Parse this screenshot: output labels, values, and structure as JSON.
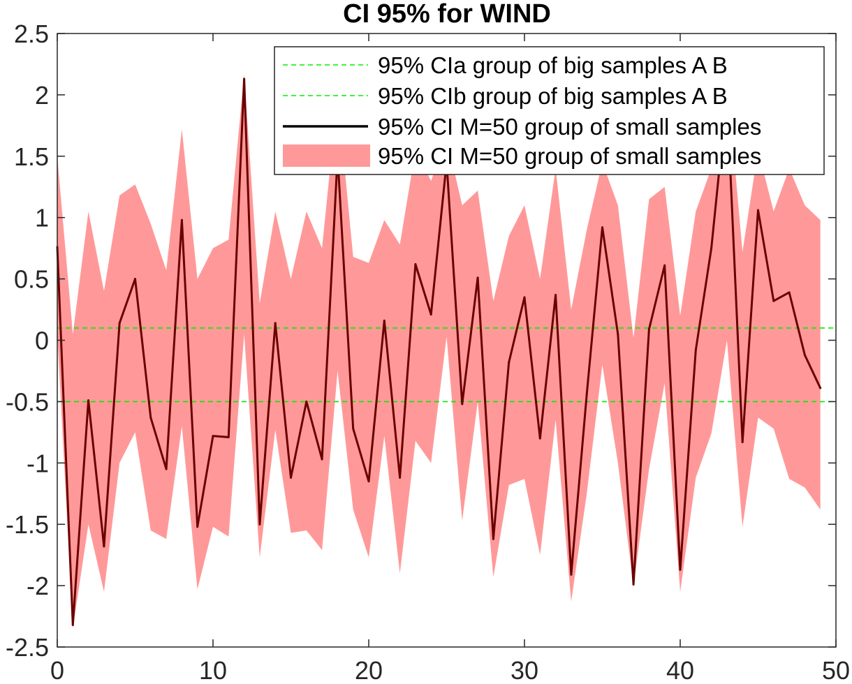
{
  "chart_data": {
    "type": "line",
    "title": "CI 95% for WIND",
    "xlabel": "",
    "ylabel": "",
    "xlim": [
      0,
      50
    ],
    "ylim": [
      -2.5,
      2.5
    ],
    "xticks": [
      0,
      10,
      20,
      30,
      40,
      50
    ],
    "yticks": [
      2.5,
      2,
      1.5,
      1,
      0.5,
      0,
      -0.5,
      -1,
      -1.5,
      -2,
      -2.5
    ],
    "xtick_labels": [
      "0",
      "10",
      "20",
      "30",
      "40",
      "50"
    ],
    "ytick_labels": [
      "2.5",
      "2",
      "1.5",
      "1",
      "0.5",
      "0",
      "-0.5",
      "-1",
      "-1.5",
      "-2",
      "-2.5"
    ],
    "grid": false,
    "legend_position": "top-right",
    "colors": {
      "ci_big": "#00ee00",
      "mean_line": "#6b0000",
      "band": "#ff9999",
      "legend_line": "#000000"
    },
    "series": [
      {
        "name": "95% CIa group of big samples A B",
        "kind": "hline",
        "y": 0.1,
        "style": "dashed"
      },
      {
        "name": "95% CIb group of big samples A B",
        "kind": "hline",
        "y": -0.5,
        "style": "dashed"
      },
      {
        "name": "95% CI M=50 group of small samples",
        "kind": "line",
        "x": [
          0,
          1,
          2,
          3,
          4,
          5,
          6,
          7,
          8,
          9,
          10,
          11,
          12,
          13,
          14,
          15,
          16,
          17,
          18,
          19,
          20,
          21,
          22,
          23,
          24,
          25,
          26,
          27,
          28,
          29,
          30,
          31,
          32,
          33,
          34,
          35,
          36,
          37,
          38,
          39,
          40,
          41,
          42,
          43,
          44,
          45,
          46,
          47,
          48,
          49
        ],
        "y": [
          0.76,
          -2.32,
          -0.49,
          -1.68,
          0.14,
          0.5,
          -0.63,
          -1.05,
          0.98,
          -1.52,
          -0.78,
          -0.79,
          2.13,
          -1.5,
          0.14,
          -1.12,
          -0.5,
          -0.97,
          1.5,
          -0.72,
          -1.15,
          0.16,
          -1.12,
          0.62,
          0.21,
          1.45,
          -0.52,
          0.51,
          -1.62,
          -0.18,
          0.35,
          -0.8,
          0.37,
          -1.91,
          -0.44,
          0.92,
          0.05,
          -1.99,
          0.09,
          0.61,
          -1.87,
          -0.08,
          0.75,
          2.0,
          -0.83,
          1.06,
          0.32,
          0.39,
          -0.12,
          -0.39
        ]
      },
      {
        "name": "95% CI M=50 group of small samples",
        "kind": "band",
        "x": [
          0,
          1,
          2,
          3,
          4,
          5,
          6,
          7,
          8,
          9,
          10,
          11,
          12,
          13,
          14,
          15,
          16,
          17,
          18,
          19,
          20,
          21,
          22,
          23,
          24,
          25,
          26,
          27,
          28,
          29,
          30,
          31,
          32,
          33,
          34,
          35,
          36,
          37,
          38,
          39,
          40,
          41,
          42,
          43,
          44,
          45,
          46,
          47,
          48,
          49
        ],
        "upper": [
          1.5,
          0.05,
          1.05,
          0.4,
          1.18,
          1.27,
          0.95,
          0.57,
          1.72,
          0.5,
          0.75,
          0.82,
          2.17,
          0.3,
          1.05,
          0.5,
          1.05,
          0.75,
          2.0,
          0.68,
          0.63,
          0.98,
          0.78,
          1.55,
          1.3,
          1.65,
          1.1,
          1.22,
          0.32,
          0.85,
          1.1,
          0.5,
          1.4,
          0.25,
          0.9,
          1.45,
          1.1,
          0.02,
          1.15,
          1.25,
          0.2,
          1.05,
          1.4,
          2.15,
          0.72,
          1.55,
          1.05,
          1.4,
          1.1,
          0.98
        ],
        "lower": [
          0.05,
          -2.35,
          -1.5,
          -2.05,
          -1.0,
          -0.75,
          -1.55,
          -1.62,
          -0.7,
          -2.03,
          -1.52,
          -1.6,
          0.05,
          -1.77,
          -0.73,
          -1.57,
          -1.55,
          -1.71,
          -0.25,
          -1.38,
          -1.77,
          -0.78,
          -1.9,
          -0.82,
          -1.0,
          0.03,
          -1.47,
          -0.5,
          -1.93,
          -1.18,
          -1.13,
          -1.75,
          -0.65,
          -2.13,
          -1.25,
          -0.2,
          -1.0,
          -2.0,
          -1.05,
          -0.35,
          -2.05,
          -1.12,
          -0.76,
          0.0,
          -1.52,
          -0.63,
          -0.72,
          -1.13,
          -1.2,
          -1.38
        ]
      }
    ]
  }
}
